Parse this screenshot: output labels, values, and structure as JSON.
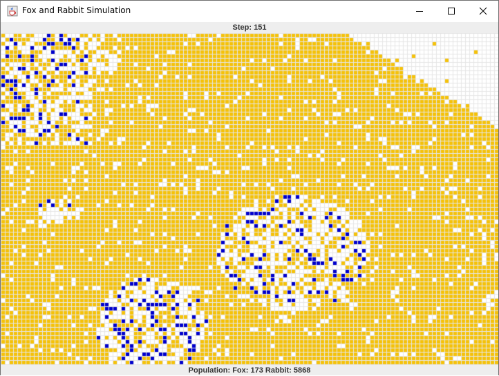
{
  "window": {
    "title": "Fox and Rabbit Simulation",
    "icon": "java-cup-icon",
    "controls": [
      "minimize-icon",
      "maximize-icon",
      "close-icon"
    ]
  },
  "status": {
    "step_label": "Step: 151",
    "population_label": "Population: Fox: 173 Rabbit: 5868"
  },
  "field": {
    "empty_color": "#ffffff",
    "grid_line_color": "#e6e6e6",
    "rabbit_color": "#f5c20a",
    "fox_color": "#0000cc",
    "fox_count": 173,
    "rabbit_count": 5868
  }
}
